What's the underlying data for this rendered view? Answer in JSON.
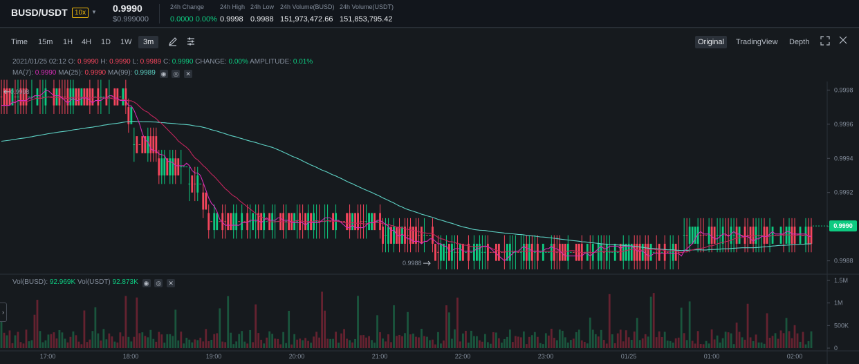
{
  "header": {
    "pair": "BUSD/USDT",
    "leverage": "10x",
    "last_price": "0.9990",
    "usd_price": "$0.999000",
    "stats": [
      {
        "label": "24h Change",
        "value": "0.0000 0.00%",
        "color": "#0ecb81"
      },
      {
        "label": "24h High",
        "value": "0.9998",
        "color": "#eaecef"
      },
      {
        "label": "24h Low",
        "value": "0.9988",
        "color": "#eaecef"
      },
      {
        "label": "24h Volume(BUSD)",
        "value": "151,973,472.66",
        "color": "#eaecef"
      },
      {
        "label": "24h Volume(USDT)",
        "value": "151,853,795.42",
        "color": "#eaecef"
      }
    ]
  },
  "toolbar": {
    "intervals": [
      "Time",
      "15m",
      "1H",
      "4H",
      "1D",
      "1W",
      "3m"
    ],
    "active_interval": "3m",
    "views": [
      "Original",
      "TradingView",
      "Depth"
    ],
    "active_view": "Original",
    "icons": [
      "pencil-icon",
      "settings-sliders-icon",
      "fullscreen-icon",
      "close-icon"
    ]
  },
  "ohlc": {
    "time": "2021/01/25 02:12",
    "o_label": "O:",
    "o": "0.9990",
    "h_label": "H:",
    "h": "0.9990",
    "l_label": "L:",
    "l": "0.9989",
    "c_label": "C:",
    "c": "0.9990",
    "change_label": "CHANGE:",
    "change": "0.00%",
    "amp_label": "AMPLITUDE:",
    "amp": "0.01%"
  },
  "ma": {
    "ma7_label": "MA(7):",
    "ma7": "0.9990",
    "ma25_label": "MA(25):",
    "ma25": "0.9990",
    "ma99_label": "MA(99):",
    "ma99": "0.9989"
  },
  "vol": {
    "busd_label": "Vol(BUSD):",
    "busd": "92.969K",
    "usdt_label": "Vol(USDT)",
    "usdt": "92.873K"
  },
  "markers": {
    "high": "0.9998",
    "low": "0.9988",
    "current": "0.9990"
  },
  "colors": {
    "up": "#0ecb81",
    "down": "#f6465d",
    "ma7": "#d52db6",
    "ma25": "#c2255c",
    "ma99": "#5ed3c6",
    "bg": "#161a1e"
  },
  "chart_data": {
    "type": "candlestick",
    "price_ticks": [
      "0.9998",
      "0.9996",
      "0.9994",
      "0.9992",
      "0.9990",
      "0.9988"
    ],
    "volume_ticks": [
      "1.5M",
      "1M",
      "500K",
      "0"
    ],
    "time_ticks": [
      "17:00",
      "18:00",
      "19:00",
      "20:00",
      "21:00",
      "22:00",
      "23:00",
      "01/25",
      "01:00",
      "02:00"
    ],
    "segments": [
      {
        "from": 0,
        "to": 45,
        "level": 0.99976
      },
      {
        "from": 46,
        "to": 47,
        "level": 0.99965
      },
      {
        "from": 48,
        "to": 56,
        "level": 0.99948
      },
      {
        "from": 57,
        "to": 67,
        "level": 0.99935
      },
      {
        "from": 68,
        "to": 72,
        "level": 0.99925
      },
      {
        "from": 73,
        "to": 74,
        "level": 0.99915
      },
      {
        "from": 75,
        "to": 137,
        "level": 0.99903
      },
      {
        "from": 138,
        "to": 156,
        "level": 0.99895
      },
      {
        "from": 157,
        "to": 246,
        "level": 0.99885
      },
      {
        "from": 247,
        "to": 293,
        "level": 0.99895
      }
    ]
  }
}
